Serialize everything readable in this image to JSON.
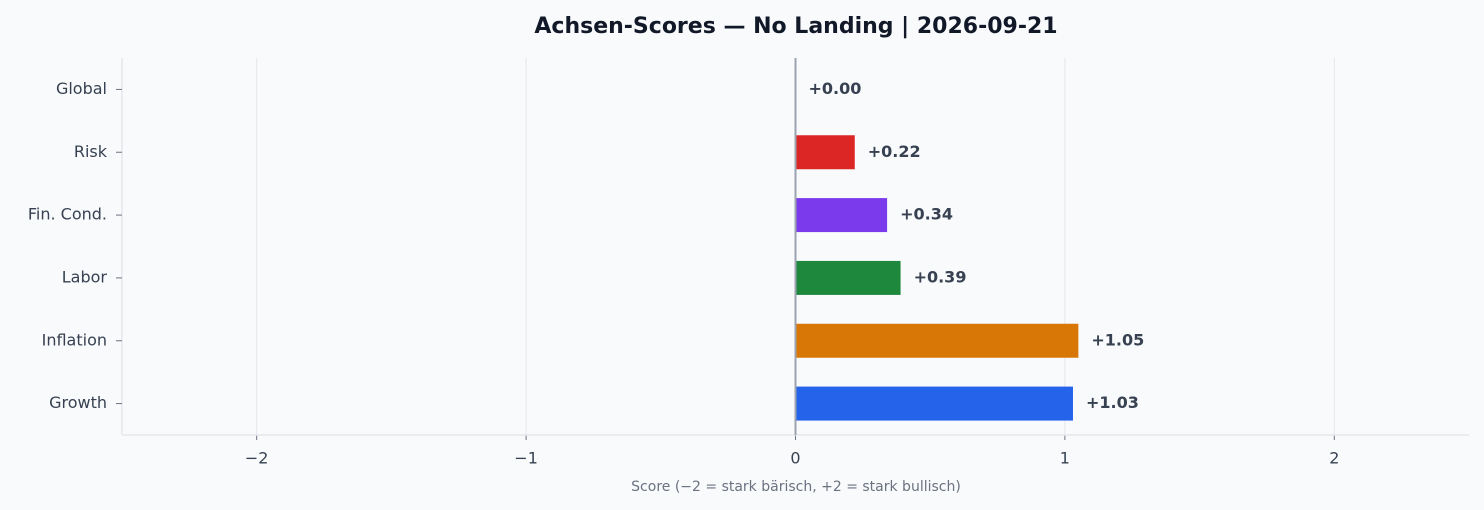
{
  "chart_data": {
    "type": "hbar",
    "title": "Achsen-Scores — No Landing | 2026-09-21",
    "x_label": "Score (−2 = stark bärisch, +2 = stark bullisch)",
    "categories": [
      "Global",
      "Risk",
      "Fin. Cond.",
      "Labor",
      "Inflation",
      "Growth"
    ],
    "values": [
      0.0,
      0.22,
      0.34,
      0.39,
      1.05,
      1.03
    ],
    "value_labels": [
      "+0.00",
      "+0.22",
      "+0.34",
      "+0.39",
      "+1.05",
      "+1.03"
    ],
    "colors": [
      "#9ca3af",
      "#dc2626",
      "#7c3aed",
      "#1e883c",
      "#d97706",
      "#2563eb"
    ],
    "xlim": [
      -2.5,
      2.5
    ],
    "xticks": [
      {
        "value": -2,
        "label": "−2"
      },
      {
        "value": -1,
        "label": "−1"
      },
      0,
      1,
      2
    ],
    "grid": true
  }
}
